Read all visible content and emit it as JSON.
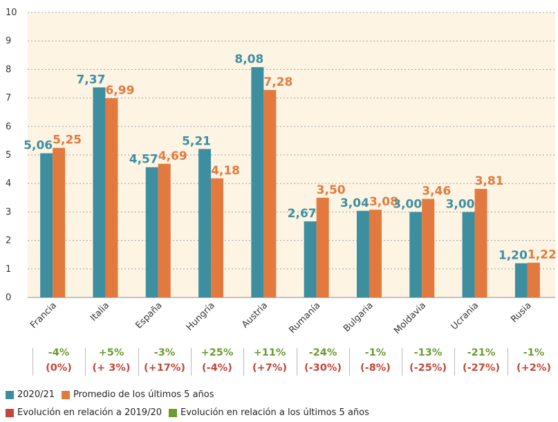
{
  "colors": {
    "series1": "#3d8fa0",
    "series2": "#e27a3f",
    "evo_2019": "#c2473a",
    "evo_5y": "#6e9a2f",
    "plot_bg": "#fdf4e3",
    "grid": "#9aa0a6"
  },
  "chart_data": {
    "type": "bar",
    "categories": [
      "Francia",
      "Italia",
      "España",
      "Hungría",
      "Austria",
      "Rumanía",
      "Bulgaria",
      "Moldavia",
      "Ucrania",
      "Rusia"
    ],
    "series": [
      {
        "name": "2020/21",
        "values": [
          5.06,
          7.37,
          4.57,
          5.21,
          8.08,
          2.67,
          3.04,
          3.0,
          3.0,
          1.2
        ],
        "labels": [
          "5,06",
          "7,37",
          "4,57",
          "5,21",
          "8,08",
          "2,67",
          "3,04",
          "3,00",
          "3,00",
          "1,20"
        ]
      },
      {
        "name": "Promedio de los últimos 5 años",
        "values": [
          5.25,
          6.99,
          4.69,
          4.18,
          7.28,
          3.5,
          3.08,
          3.46,
          3.81,
          1.22
        ],
        "labels": [
          "5,25",
          "6,99",
          "4,69",
          "4,18",
          "7,28",
          "3,50",
          "3,08",
          "3,46",
          "3,81",
          "1,22"
        ]
      }
    ],
    "ylim": [
      0,
      10
    ],
    "yticks": [
      "0",
      "1",
      "2",
      "3",
      "4",
      "5",
      "6",
      "7",
      "8",
      "9",
      "10"
    ],
    "grid": true,
    "evolution_5y": [
      "-4%",
      "+5%",
      "-3%",
      "+25%",
      "+11%",
      "-24%",
      "-1%",
      "-13%",
      "-21%",
      "-1%"
    ],
    "evolution_2019": [
      "(0%)",
      "(+ 3%)",
      "(+17%)",
      "(-4%)",
      "(+7%)",
      "(-30%)",
      "(-8%)",
      "(-25%)",
      "(-27%)",
      "(+2%)"
    ],
    "legend": [
      "2020/21",
      "Promedio de los últimos 5 años",
      "Evolución en relación a 2019/20",
      "Evolución en relación a los últimos 5 años"
    ]
  }
}
